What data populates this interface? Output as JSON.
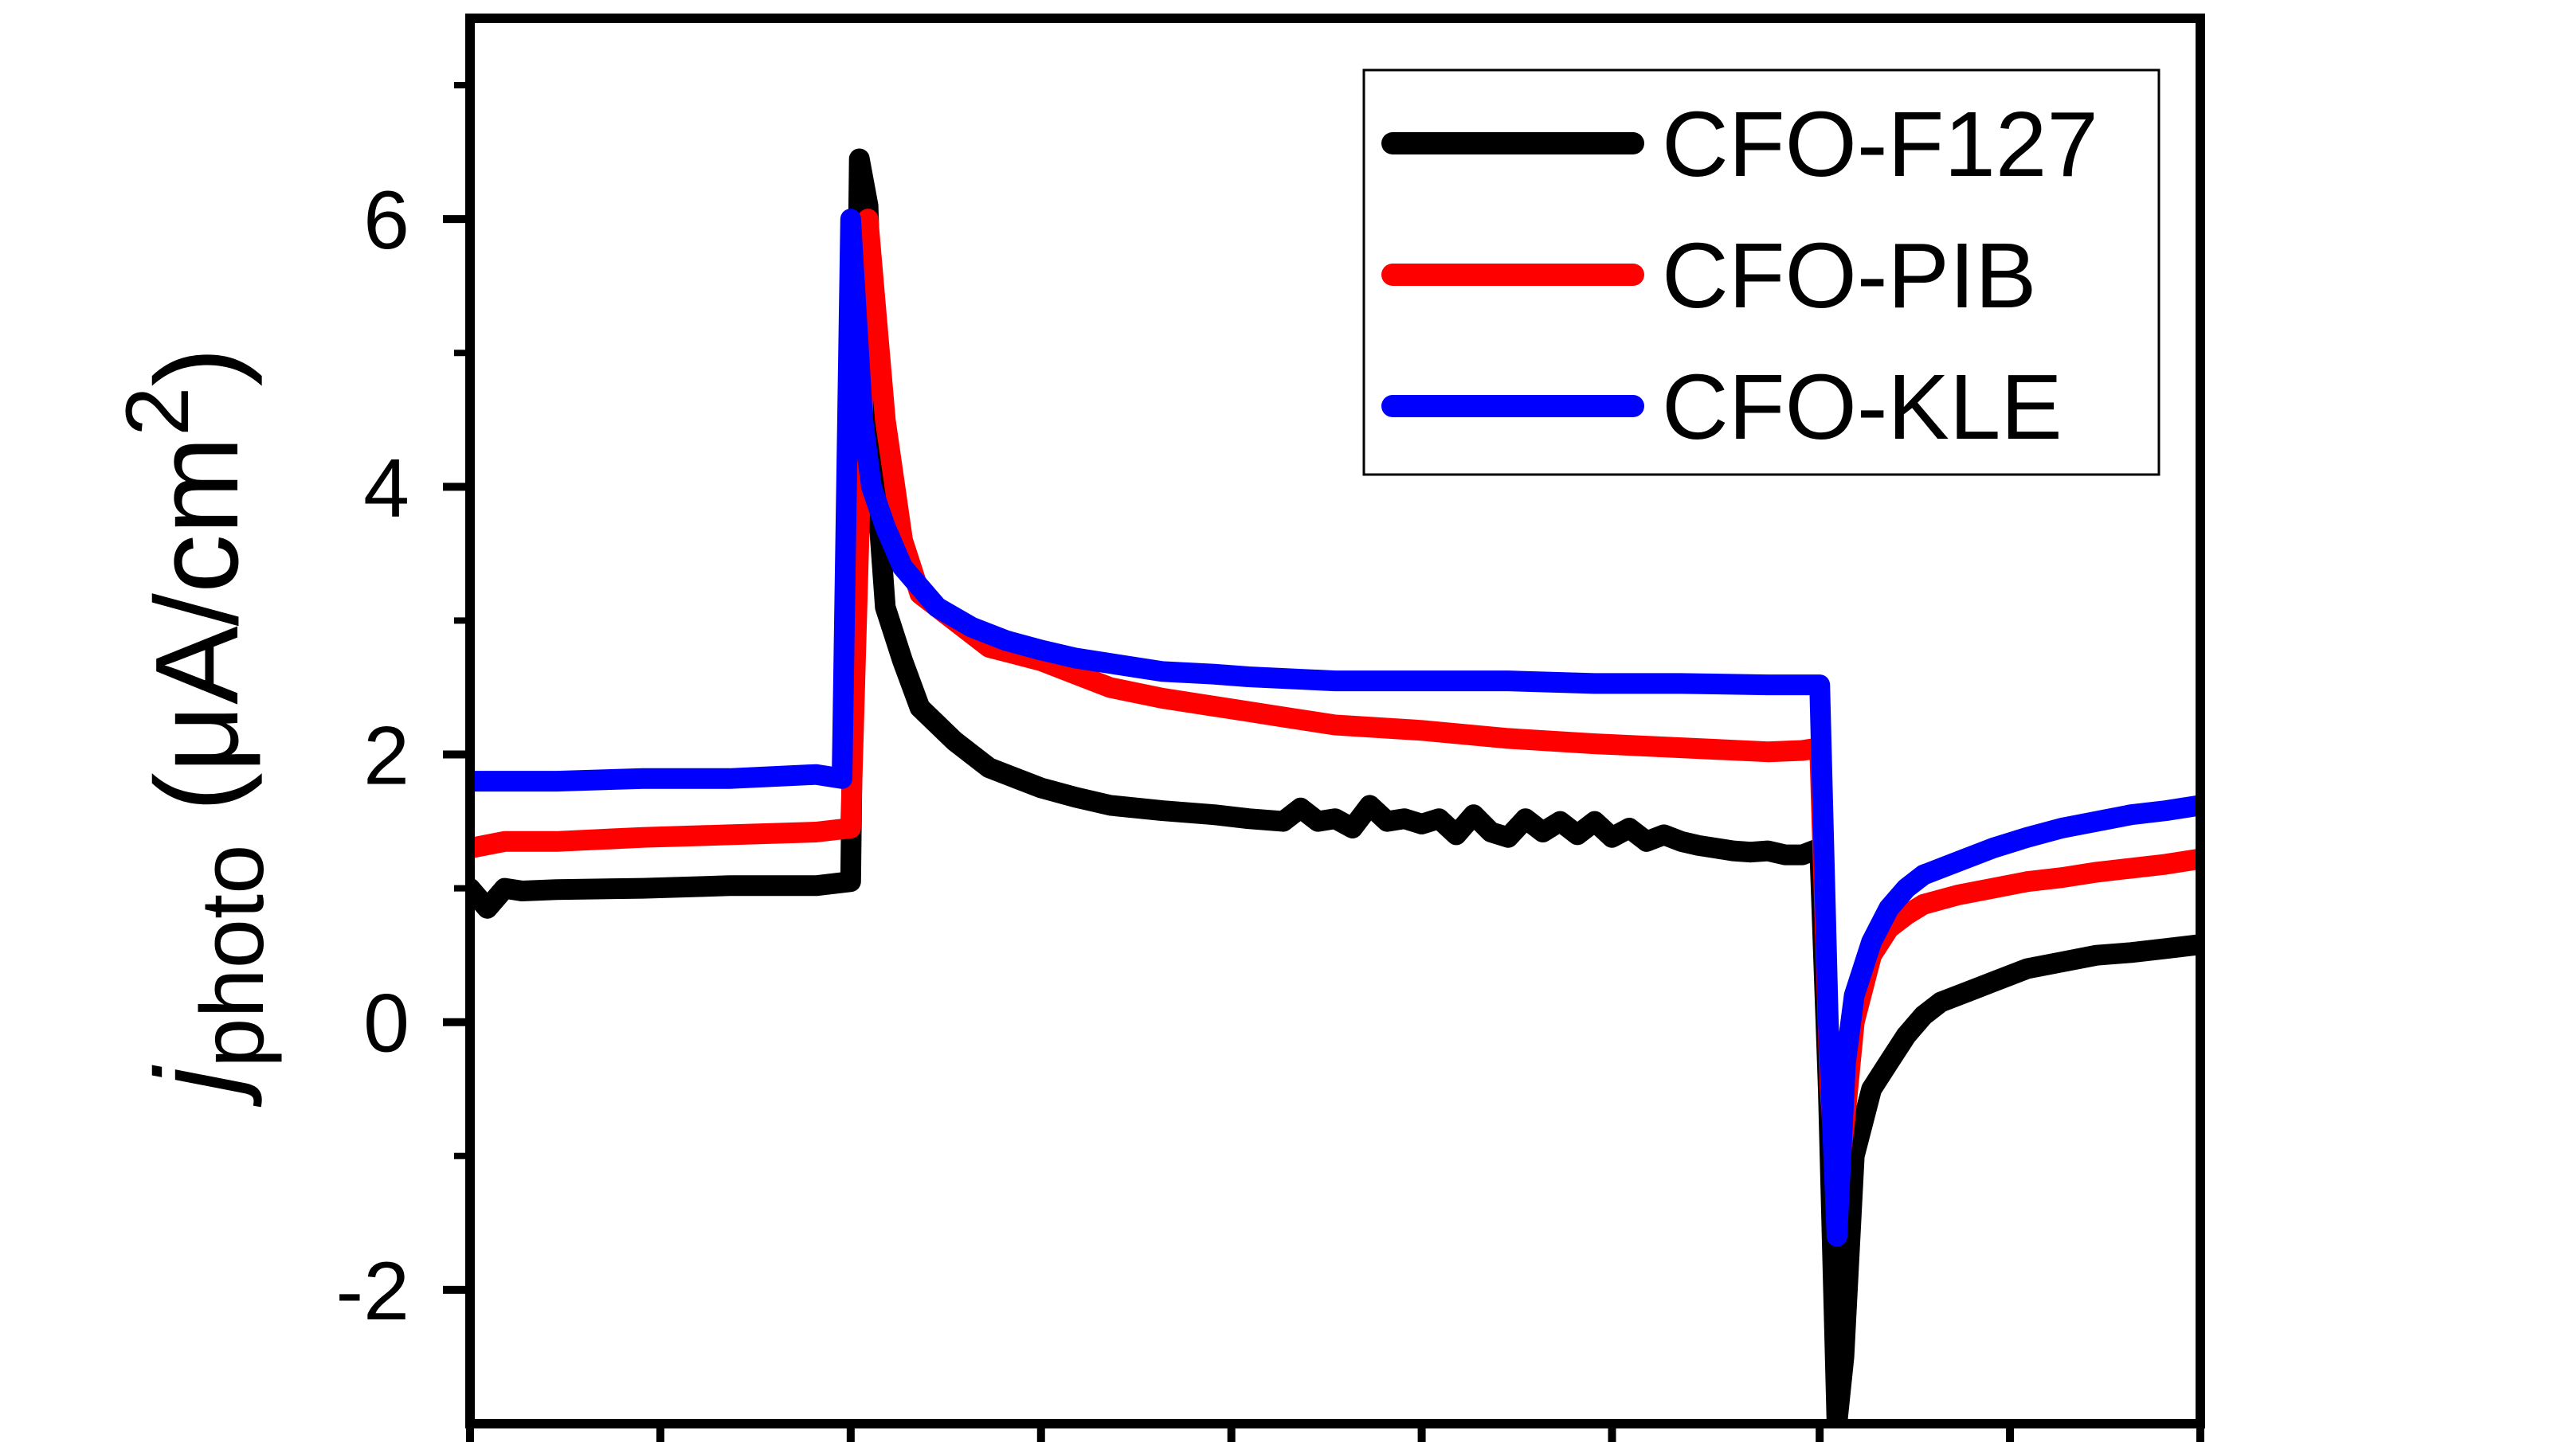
{
  "chart_data": {
    "type": "line",
    "ylabel": {
      "symbol": "j",
      "subscript": "photo",
      "unit": "(μA/cm",
      "unit_superscript": "2",
      "unit_close": ")"
    },
    "xlim": [
      0,
      100
    ],
    "ylim": [
      -3,
      7.5
    ],
    "y_ticks": [
      {
        "value": -2,
        "label": "-2"
      },
      {
        "value": 0,
        "label": "0"
      },
      {
        "value": 2,
        "label": "2"
      },
      {
        "value": 4,
        "label": "4"
      },
      {
        "value": 6,
        "label": "6"
      }
    ],
    "y_minor_ticks": [
      -1,
      1,
      3,
      5,
      7
    ],
    "x_ticks": [
      0,
      11,
      22,
      33,
      44,
      55,
      66,
      78,
      89,
      100
    ],
    "grid": false,
    "legend_position": "top-right",
    "series": [
      {
        "name": "CFO-F127",
        "color": "#000000",
        "x": [
          0,
          1,
          2,
          3,
          5,
          10,
          15,
          20,
          22,
          22.5,
          23,
          23.5,
          24,
          25,
          26,
          28,
          30,
          33,
          35,
          37,
          40,
          43,
          45,
          47,
          48,
          49,
          50,
          51,
          52,
          53,
          54,
          55,
          56,
          57,
          58,
          59,
          60,
          61,
          62,
          63,
          64,
          65,
          66,
          67,
          68,
          69,
          70,
          71,
          72,
          73,
          74,
          75,
          76,
          77,
          78,
          78.5,
          79,
          79.4,
          80,
          81,
          82,
          83,
          84,
          85,
          86,
          87,
          88,
          89,
          90,
          92,
          94,
          96,
          98,
          100
        ],
        "y": [
          1.0,
          0.85,
          1.0,
          0.98,
          0.99,
          1.0,
          1.02,
          1.02,
          1.05,
          6.45,
          6.1,
          4.0,
          3.1,
          2.7,
          2.35,
          2.1,
          1.9,
          1.75,
          1.68,
          1.62,
          1.58,
          1.55,
          1.52,
          1.5,
          1.6,
          1.5,
          1.52,
          1.45,
          1.62,
          1.5,
          1.52,
          1.48,
          1.52,
          1.4,
          1.55,
          1.42,
          1.38,
          1.52,
          1.42,
          1.5,
          1.4,
          1.5,
          1.38,
          1.45,
          1.35,
          1.4,
          1.35,
          1.32,
          1.3,
          1.28,
          1.27,
          1.28,
          1.25,
          1.25,
          1.3,
          -0.5,
          -3.0,
          -2.5,
          -1.0,
          -0.5,
          -0.3,
          -0.1,
          0.05,
          0.15,
          0.2,
          0.25,
          0.3,
          0.35,
          0.4,
          0.45,
          0.5,
          0.52,
          0.55,
          0.58
        ]
      },
      {
        "name": "CFO-PIB",
        "color": "#ff0000",
        "x": [
          0,
          2,
          5,
          10,
          15,
          20,
          22,
          23,
          24,
          25,
          26,
          28,
          30,
          33,
          35,
          37,
          40,
          43,
          45,
          47,
          50,
          55,
          60,
          65,
          70,
          75,
          77,
          78,
          78.6,
          79,
          79.4,
          80,
          81,
          82,
          83,
          84,
          86,
          88,
          90,
          92,
          94,
          96,
          98,
          100
        ],
        "y": [
          1.3,
          1.35,
          1.35,
          1.38,
          1.4,
          1.42,
          1.45,
          6.0,
          4.5,
          3.6,
          3.2,
          3.0,
          2.8,
          2.7,
          2.6,
          2.5,
          2.42,
          2.36,
          2.32,
          2.28,
          2.22,
          2.18,
          2.12,
          2.08,
          2.05,
          2.02,
          2.03,
          2.05,
          -0.5,
          -1.2,
          -0.8,
          0.0,
          0.5,
          0.7,
          0.8,
          0.88,
          0.95,
          1.0,
          1.05,
          1.08,
          1.12,
          1.15,
          1.18,
          1.22
        ]
      },
      {
        "name": "CFO-KLE",
        "color": "#0000ff",
        "x": [
          0,
          2,
          5,
          10,
          15,
          20,
          21.5,
          22,
          22.7,
          23.2,
          24,
          25,
          27,
          29,
          31,
          33,
          35,
          37,
          40,
          43,
          45,
          50,
          55,
          60,
          65,
          70,
          75,
          77,
          78,
          78.5,
          79,
          79.5,
          80,
          81,
          82,
          83,
          84,
          86,
          88,
          90,
          92,
          94,
          96,
          98,
          100
        ],
        "y": [
          1.8,
          1.8,
          1.8,
          1.82,
          1.82,
          1.85,
          1.82,
          6.0,
          4.5,
          4.0,
          3.7,
          3.4,
          3.1,
          2.95,
          2.85,
          2.78,
          2.72,
          2.68,
          2.62,
          2.6,
          2.58,
          2.55,
          2.55,
          2.55,
          2.53,
          2.53,
          2.52,
          2.52,
          2.52,
          0.0,
          -1.6,
          -0.3,
          0.2,
          0.6,
          0.85,
          1.0,
          1.1,
          1.2,
          1.3,
          1.38,
          1.45,
          1.5,
          1.55,
          1.58,
          1.62
        ]
      }
    ]
  }
}
